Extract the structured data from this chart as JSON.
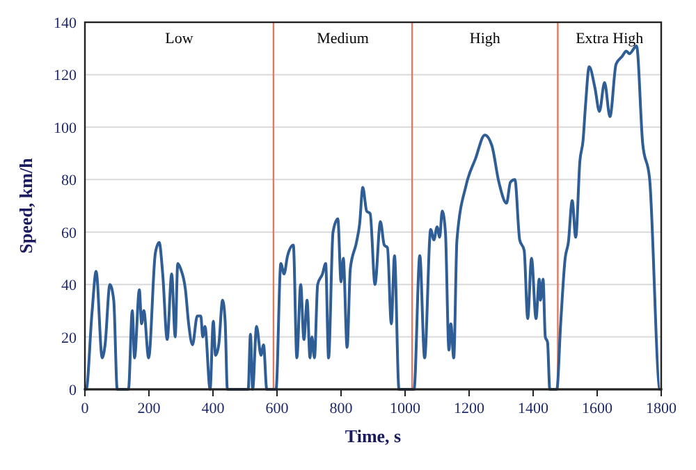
{
  "chart_data": {
    "type": "line",
    "xlabel": "Time, s",
    "ylabel": "Speed, km/h",
    "xlim": [
      0,
      1800
    ],
    "xticks": [
      0,
      200,
      400,
      600,
      800,
      1000,
      1200,
      1400,
      1600,
      1800
    ],
    "ylim": [
      0,
      140
    ],
    "yticks": [
      0,
      20,
      40,
      60,
      80,
      100,
      120,
      140
    ],
    "grid": "y",
    "marker": "none",
    "line_style": "solid",
    "series": [
      {
        "color": "#2f5d95",
        "x": [
          0,
          4,
          22,
          35,
          54,
          63,
          78,
          90,
          101,
          136,
          148,
          155,
          170,
          177,
          184,
          199,
          220,
          232,
          243,
          257,
          271,
          282,
          290,
          299,
          314,
          324,
          336,
          351,
          362,
          368,
          375,
          391,
          401,
          408,
          418,
          430,
          438,
          445,
          510,
          517,
          524,
          536,
          550,
          558,
          568,
          597,
          612,
          622,
          633,
          651,
          662,
          674,
          684,
          694,
          703,
          709,
          717,
          727,
          742,
          752,
          761,
          775,
          790,
          800,
          807,
          819,
          829,
          848,
          858,
          868,
          880,
          891,
          906,
          923,
          935,
          945,
          957,
          967,
          981,
          1028,
          1046,
          1061,
          1080,
          1090,
          1100,
          1108,
          1116,
          1126,
          1137,
          1143,
          1152,
          1162,
          1191,
          1220,
          1249,
          1271,
          1293,
          1317,
          1329,
          1343,
          1358,
          1372,
          1383,
          1395,
          1409,
          1419,
          1423,
          1431,
          1438,
          1445,
          1452,
          1474,
          1486,
          1500,
          1510,
          1522,
          1533,
          1546,
          1556,
          1564,
          1575,
          1593,
          1607,
          1623,
          1640,
          1659,
          1678,
          1691,
          1701,
          1723,
          1742,
          1764,
          1796,
          1800
        ],
        "values": [
          0,
          0,
          29,
          45,
          12,
          17,
          40,
          34,
          0,
          0,
          30,
          12,
          38,
          25,
          30,
          12,
          52,
          56,
          44,
          19,
          44,
          20,
          48,
          46,
          38,
          25,
          17,
          28,
          28,
          20,
          24,
          0,
          26,
          13,
          17,
          34,
          26,
          0,
          0,
          21,
          0,
          24,
          13,
          17,
          0,
          0,
          48,
          44,
          51,
          55,
          12,
          40,
          19,
          34,
          12,
          20,
          12,
          40,
          44,
          48,
          12,
          60,
          65,
          41,
          50,
          16,
          46,
          56,
          63,
          77,
          68,
          67,
          40,
          64,
          55,
          54,
          25,
          51,
          0,
          0,
          51,
          12,
          61,
          57,
          62,
          58,
          68,
          60,
          15,
          25,
          12,
          57,
          78,
          88,
          97,
          93,
          79,
          71,
          79,
          80,
          57,
          53,
          27,
          50,
          27,
          42,
          34,
          42,
          20,
          18,
          0,
          0,
          25,
          50,
          56,
          72,
          58,
          87,
          95,
          109,
          123,
          115,
          106,
          117,
          104,
          124,
          127,
          129,
          128,
          131,
          94,
          80,
          0,
          0
        ]
      }
    ],
    "ref_lines": [
      {
        "axis": "x",
        "value": 589,
        "color": "#e07a5f"
      },
      {
        "axis": "x",
        "value": 1022,
        "color": "#e07a5f"
      },
      {
        "axis": "x",
        "value": 1477,
        "color": "#e07a5f"
      }
    ],
    "annotations": [
      "Low",
      "Medium",
      "High",
      "Extra High"
    ]
  }
}
